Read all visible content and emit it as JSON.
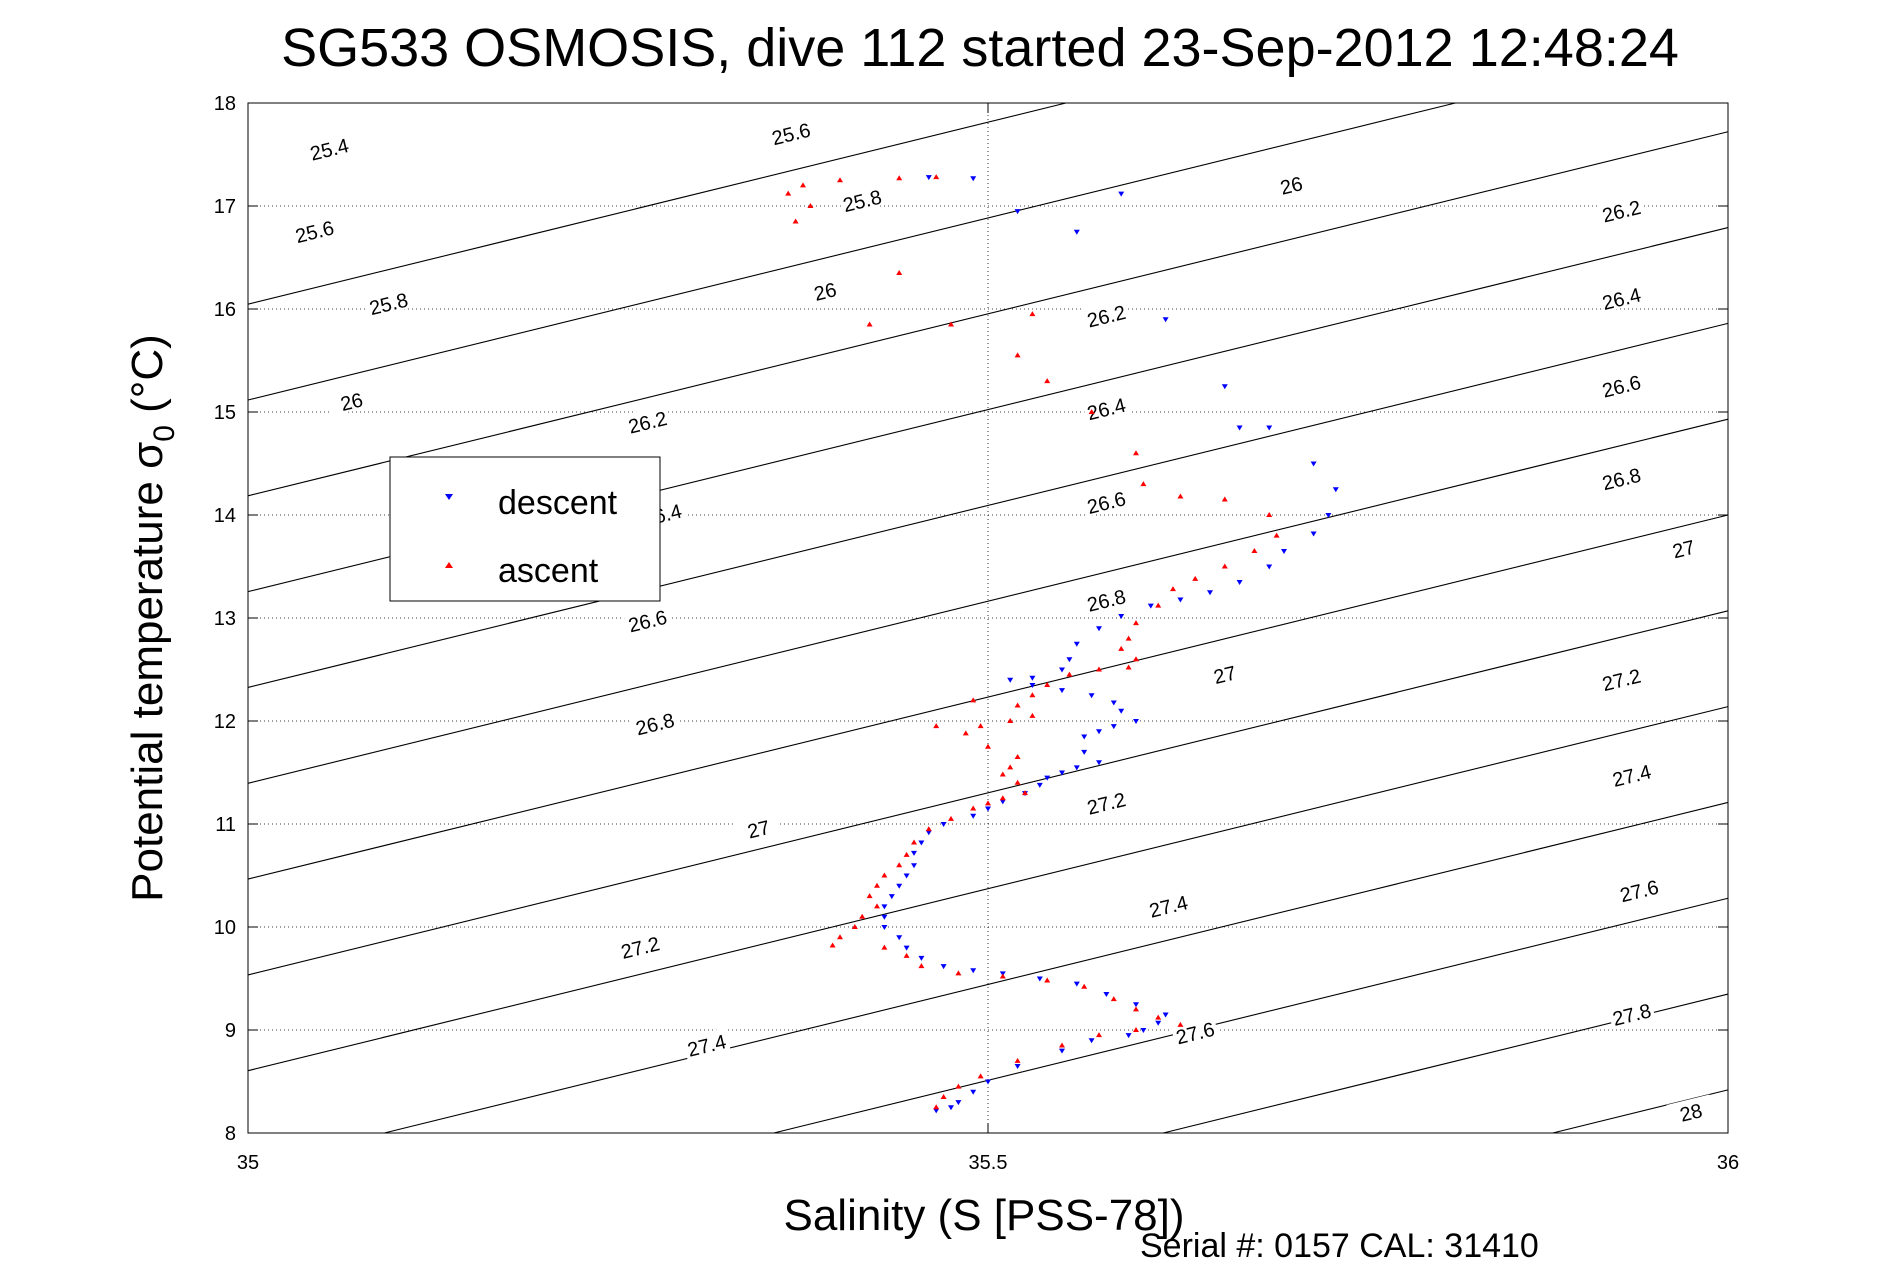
{
  "chart_data": {
    "type": "scatter",
    "title": "SG533 OSMOSIS, dive 112 started 23-Sep-2012 12:48:24",
    "xlabel": "Salinity (S [PSS-78])",
    "ylabel_main": "Potential temperature σ",
    "ylabel_sub": "0",
    "ylabel_tail": " (°C)",
    "footer": "Serial #: 0157  CAL: 31410",
    "xlim": [
      35,
      36
    ],
    "ylim": [
      8,
      18
    ],
    "xticks": [
      35,
      35.5,
      36
    ],
    "xtick_labels": [
      "35",
      "35.5",
      "36"
    ],
    "yticks": [
      8,
      9,
      10,
      11,
      12,
      13,
      14,
      15,
      16,
      17,
      18
    ],
    "ytick_labels": [
      "8",
      "9",
      "10",
      "11",
      "12",
      "13",
      "14",
      "15",
      "16",
      "17",
      "18"
    ],
    "grid": "dotted at x=35.5 and every y tick",
    "legend": {
      "position": "left-middle",
      "entries": [
        {
          "label": "descent",
          "color": "#0000ff",
          "marker": "triangle-down"
        },
        {
          "label": "ascent",
          "color": "#ff0000",
          "marker": "triangle-up"
        }
      ]
    },
    "isopycnal_contours": {
      "levels": [
        25.4,
        25.6,
        25.8,
        26,
        26.2,
        26.4,
        26.6,
        26.8,
        27,
        27.2,
        27.4,
        27.6,
        27.8,
        28
      ],
      "labels": [
        "25.4",
        "25.6",
        "25.8",
        "26",
        "26.2",
        "26.4",
        "26.6",
        "26.8",
        "27",
        "27.2",
        "27.4",
        "27.6",
        "27.8",
        "28"
      ],
      "label_positions": [
        {
          "level": "25.4",
          "x": 35.055,
          "y": 17.55
        },
        {
          "level": "25.6",
          "x": 35.045,
          "y": 16.75
        },
        {
          "level": "25.8",
          "x": 35.095,
          "y": 16.05
        },
        {
          "level": "26",
          "x": 35.07,
          "y": 15.1
        },
        {
          "level": "26.2",
          "x": 35.27,
          "y": 14.9
        },
        {
          "level": "26.4",
          "x": 35.28,
          "y": 14.0
        },
        {
          "level": "26.6",
          "x": 35.27,
          "y": 12.97
        },
        {
          "level": "26.8",
          "x": 35.275,
          "y": 11.97
        },
        {
          "level": "27",
          "x": 35.345,
          "y": 10.95
        },
        {
          "level": "27.2",
          "x": 35.265,
          "y": 9.8
        },
        {
          "level": "27.4",
          "x": 35.31,
          "y": 8.85
        },
        {
          "level": "25.6",
          "x": 35.367,
          "y": 17.7
        },
        {
          "level": "25.8",
          "x": 35.415,
          "y": 17.05
        },
        {
          "level": "26",
          "x": 35.39,
          "y": 16.17
        },
        {
          "level": "26.2",
          "x": 35.58,
          "y": 15.93
        },
        {
          "level": "26.4",
          "x": 35.58,
          "y": 15.03
        },
        {
          "level": "26.6",
          "x": 35.58,
          "y": 14.12
        },
        {
          "level": "26.8",
          "x": 35.58,
          "y": 13.17
        },
        {
          "level": "27",
          "x": 35.66,
          "y": 12.45
        },
        {
          "level": "27.2",
          "x": 35.58,
          "y": 11.2
        },
        {
          "level": "27.4",
          "x": 35.622,
          "y": 10.2
        },
        {
          "level": "27.6",
          "x": 35.64,
          "y": 8.97
        },
        {
          "level": "26",
          "x": 35.705,
          "y": 17.2
        },
        {
          "level": "26.2",
          "x": 35.928,
          "y": 16.95
        },
        {
          "level": "26.4",
          "x": 35.928,
          "y": 16.1
        },
        {
          "level": "26.6",
          "x": 35.928,
          "y": 15.25
        },
        {
          "level": "26.8",
          "x": 35.928,
          "y": 14.35
        },
        {
          "level": "27",
          "x": 35.97,
          "y": 13.67
        },
        {
          "level": "27.2",
          "x": 35.928,
          "y": 12.4
        },
        {
          "level": "27.4",
          "x": 35.935,
          "y": 11.47
        },
        {
          "level": "27.6",
          "x": 35.94,
          "y": 10.35
        },
        {
          "level": "27.8",
          "x": 35.935,
          "y": 9.15
        },
        {
          "level": "28",
          "x": 35.975,
          "y": 8.2
        }
      ]
    },
    "series": [
      {
        "name": "descent",
        "color": "#0000ff",
        "marker": "triangle-down",
        "points": [
          [
            35.46,
            17.28
          ],
          [
            35.49,
            17.27
          ],
          [
            35.52,
            16.95
          ],
          [
            35.56,
            16.75
          ],
          [
            35.59,
            17.12
          ],
          [
            35.62,
            15.9
          ],
          [
            35.66,
            15.25
          ],
          [
            35.67,
            14.85
          ],
          [
            35.69,
            14.85
          ],
          [
            35.72,
            14.5
          ],
          [
            35.735,
            14.25
          ],
          [
            35.73,
            14.0
          ],
          [
            35.72,
            13.82
          ],
          [
            35.7,
            13.65
          ],
          [
            35.69,
            13.5
          ],
          [
            35.67,
            13.35
          ],
          [
            35.65,
            13.25
          ],
          [
            35.63,
            13.18
          ],
          [
            35.61,
            13.12
          ],
          [
            35.59,
            13.02
          ],
          [
            35.575,
            12.9
          ],
          [
            35.56,
            12.75
          ],
          [
            35.555,
            12.6
          ],
          [
            35.55,
            12.5
          ],
          [
            35.53,
            12.42
          ],
          [
            35.515,
            12.4
          ],
          [
            35.53,
            12.35
          ],
          [
            35.55,
            12.3
          ],
          [
            35.57,
            12.25
          ],
          [
            35.585,
            12.18
          ],
          [
            35.59,
            12.1
          ],
          [
            35.6,
            12.0
          ],
          [
            35.585,
            11.95
          ],
          [
            35.575,
            11.9
          ],
          [
            35.565,
            11.85
          ],
          [
            35.565,
            11.7
          ],
          [
            35.575,
            11.6
          ],
          [
            35.56,
            11.55
          ],
          [
            35.55,
            11.5
          ],
          [
            35.54,
            11.45
          ],
          [
            35.535,
            11.38
          ],
          [
            35.525,
            11.3
          ],
          [
            35.51,
            11.22
          ],
          [
            35.5,
            11.15
          ],
          [
            35.49,
            11.08
          ],
          [
            35.47,
            11.0
          ],
          [
            35.46,
            10.92
          ],
          [
            35.455,
            10.82
          ],
          [
            35.45,
            10.72
          ],
          [
            35.45,
            10.6
          ],
          [
            35.445,
            10.5
          ],
          [
            35.44,
            10.4
          ],
          [
            35.435,
            10.3
          ],
          [
            35.43,
            10.2
          ],
          [
            35.43,
            10.1
          ],
          [
            35.43,
            10.0
          ],
          [
            35.44,
            9.9
          ],
          [
            35.445,
            9.8
          ],
          [
            35.455,
            9.7
          ],
          [
            35.47,
            9.62
          ],
          [
            35.49,
            9.58
          ],
          [
            35.51,
            9.55
          ],
          [
            35.535,
            9.5
          ],
          [
            35.56,
            9.45
          ],
          [
            35.58,
            9.35
          ],
          [
            35.6,
            9.25
          ],
          [
            35.62,
            9.15
          ],
          [
            35.615,
            9.07
          ],
          [
            35.605,
            9.0
          ],
          [
            35.595,
            8.95
          ],
          [
            35.57,
            8.9
          ],
          [
            35.55,
            8.8
          ],
          [
            35.52,
            8.65
          ],
          [
            35.5,
            8.5
          ],
          [
            35.49,
            8.4
          ],
          [
            35.48,
            8.3
          ],
          [
            35.475,
            8.25
          ],
          [
            35.465,
            8.22
          ]
        ]
      },
      {
        "name": "ascent",
        "color": "#ff0000",
        "marker": "triangle-up",
        "points": [
          [
            35.465,
            17.28
          ],
          [
            35.44,
            17.27
          ],
          [
            35.4,
            17.25
          ],
          [
            35.375,
            17.2
          ],
          [
            35.365,
            17.12
          ],
          [
            35.38,
            17.0
          ],
          [
            35.37,
            16.85
          ],
          [
            35.44,
            16.35
          ],
          [
            35.42,
            15.85
          ],
          [
            35.475,
            15.85
          ],
          [
            35.53,
            15.95
          ],
          [
            35.52,
            15.55
          ],
          [
            35.54,
            15.3
          ],
          [
            35.57,
            15.0
          ],
          [
            35.6,
            14.6
          ],
          [
            35.605,
            14.3
          ],
          [
            35.63,
            14.18
          ],
          [
            35.66,
            14.15
          ],
          [
            35.69,
            14.0
          ],
          [
            35.695,
            13.8
          ],
          [
            35.68,
            13.65
          ],
          [
            35.66,
            13.5
          ],
          [
            35.64,
            13.38
          ],
          [
            35.625,
            13.28
          ],
          [
            35.615,
            13.12
          ],
          [
            35.6,
            12.95
          ],
          [
            35.595,
            12.8
          ],
          [
            35.59,
            12.7
          ],
          [
            35.6,
            12.6
          ],
          [
            35.595,
            12.52
          ],
          [
            35.575,
            12.5
          ],
          [
            35.555,
            12.45
          ],
          [
            35.54,
            12.35
          ],
          [
            35.53,
            12.25
          ],
          [
            35.52,
            12.15
          ],
          [
            35.53,
            12.05
          ],
          [
            35.515,
            12.0
          ],
          [
            35.495,
            11.95
          ],
          [
            35.485,
            11.88
          ],
          [
            35.465,
            11.95
          ],
          [
            35.49,
            12.2
          ],
          [
            35.5,
            11.75
          ],
          [
            35.52,
            11.65
          ],
          [
            35.515,
            11.55
          ],
          [
            35.51,
            11.48
          ],
          [
            35.52,
            11.4
          ],
          [
            35.525,
            11.3
          ],
          [
            35.51,
            11.25
          ],
          [
            35.5,
            11.2
          ],
          [
            35.49,
            11.15
          ],
          [
            35.475,
            11.05
          ],
          [
            35.46,
            10.95
          ],
          [
            35.45,
            10.82
          ],
          [
            35.445,
            10.7
          ],
          [
            35.44,
            10.6
          ],
          [
            35.43,
            10.5
          ],
          [
            35.425,
            10.4
          ],
          [
            35.42,
            10.3
          ],
          [
            35.425,
            10.2
          ],
          [
            35.415,
            10.1
          ],
          [
            35.41,
            10.0
          ],
          [
            35.4,
            9.9
          ],
          [
            35.395,
            9.82
          ],
          [
            35.43,
            9.8
          ],
          [
            35.445,
            9.72
          ],
          [
            35.455,
            9.62
          ],
          [
            35.48,
            9.55
          ],
          [
            35.51,
            9.52
          ],
          [
            35.54,
            9.48
          ],
          [
            35.565,
            9.42
          ],
          [
            35.585,
            9.3
          ],
          [
            35.6,
            9.2
          ],
          [
            35.615,
            9.12
          ],
          [
            35.63,
            9.05
          ],
          [
            35.6,
            9.0
          ],
          [
            35.575,
            8.95
          ],
          [
            35.55,
            8.85
          ],
          [
            35.52,
            8.7
          ],
          [
            35.495,
            8.55
          ],
          [
            35.48,
            8.45
          ],
          [
            35.47,
            8.35
          ],
          [
            35.465,
            8.25
          ]
        ]
      }
    ]
  }
}
